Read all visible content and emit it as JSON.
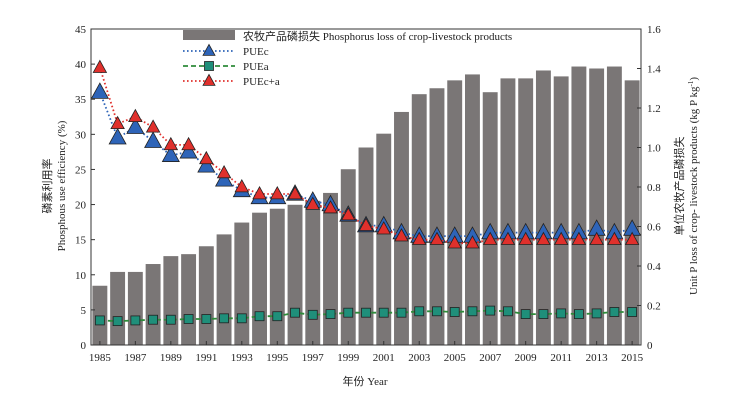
{
  "chart_data": {
    "type": "bar",
    "title": "",
    "xlabel": "年份 Year",
    "ylabel_left_cn": "磷素利用率",
    "ylabel_left_en": "Phosphous use efficiency (%)",
    "ylabel_right_cn": "单位农牧产品磷损失",
    "ylabel_right_en": "Unit P loss of crop- livestock products (kg P kg",
    "ylabel_right_sup": "-1",
    "ylabel_right_end": ")",
    "ylim_left": [
      0,
      45
    ],
    "ylim_right": [
      0,
      1.6
    ],
    "yticks_left": [
      0,
      5,
      10,
      15,
      20,
      25,
      30,
      35,
      40,
      45
    ],
    "yticks_right": [
      0,
      0.2,
      0.4,
      0.6,
      0.8,
      1.0,
      1.2,
      1.4,
      1.6
    ],
    "yticks_right_labels": [
      "0",
      "0.2",
      "0.4",
      "0.6",
      "0.8",
      "1.0",
      "1.2",
      "1.4",
      "1.6"
    ],
    "x": [
      1985,
      1986,
      1987,
      1988,
      1989,
      1990,
      1991,
      1992,
      1993,
      1994,
      1995,
      1996,
      1997,
      1998,
      1999,
      2000,
      2001,
      2002,
      2003,
      2004,
      2005,
      2006,
      2007,
      2008,
      2009,
      2010,
      2011,
      2012,
      2013,
      2014,
      2015
    ],
    "xtick_labels": [
      "1985",
      "1987",
      "1989",
      "1991",
      "1993",
      "1995",
      "1997",
      "1999",
      "2001",
      "2003",
      "2005",
      "2007",
      "2009",
      "2011",
      "2013",
      "2015"
    ],
    "xtick_years": [
      1985,
      1987,
      1989,
      1991,
      1993,
      1995,
      1997,
      1999,
      2001,
      2003,
      2005,
      2007,
      2009,
      2011,
      2013,
      2015
    ],
    "legend_position": "top-center",
    "series": [
      {
        "name": "农牧产品磷损失 Phosphorus loss of crop-livestock products",
        "kind": "bar",
        "axis": "right",
        "color": "#7a7676",
        "values": [
          0.3,
          0.37,
          0.37,
          0.41,
          0.45,
          0.46,
          0.5,
          0.56,
          0.62,
          0.67,
          0.69,
          0.71,
          0.73,
          0.77,
          0.89,
          1.0,
          1.07,
          1.18,
          1.27,
          1.3,
          1.34,
          1.37,
          1.28,
          1.35,
          1.35,
          1.39,
          1.36,
          1.41,
          1.4,
          1.41,
          1.34
        ]
      },
      {
        "name": "PUEc",
        "kind": "line",
        "axis": "left",
        "marker": "triangle",
        "color": "#2e64b8",
        "line_style": "dotted",
        "values": [
          36.0,
          29.5,
          31.0,
          29.0,
          27.0,
          27.5,
          25.5,
          23.5,
          22.0,
          21.0,
          21.0,
          21.5,
          20.5,
          20.0,
          18.5,
          17.0,
          17.0,
          16.0,
          15.5,
          15.5,
          15.5,
          15.5,
          16.0,
          16.0,
          16.0,
          16.0,
          16.0,
          16.0,
          16.5,
          16.0,
          16.5
        ]
      },
      {
        "name": "PUEa",
        "kind": "line",
        "axis": "left",
        "marker": "square",
        "color": "#1f8f7a",
        "line_color": "#2e8b3a",
        "line_style": "dashed",
        "values": [
          3.5,
          3.4,
          3.5,
          3.6,
          3.6,
          3.7,
          3.7,
          3.8,
          3.8,
          4.1,
          4.1,
          4.6,
          4.3,
          4.4,
          4.6,
          4.6,
          4.6,
          4.6,
          4.8,
          4.8,
          4.7,
          4.8,
          4.9,
          4.8,
          4.4,
          4.4,
          4.5,
          4.4,
          4.5,
          4.7,
          4.7
        ]
      },
      {
        "name": "PUEc+a",
        "kind": "line",
        "axis": "left",
        "marker": "triangle",
        "color": "#e0302c",
        "line_style": "dotted",
        "values": [
          39.5,
          31.5,
          32.5,
          31.0,
          28.5,
          28.5,
          26.5,
          24.5,
          22.5,
          21.5,
          21.5,
          21.5,
          20.0,
          19.5,
          18.5,
          17.0,
          16.5,
          15.5,
          15.0,
          15.0,
          14.5,
          14.5,
          15.0,
          15.0,
          15.0,
          15.0,
          15.0,
          15.0,
          15.0,
          15.0,
          15.0
        ]
      }
    ]
  }
}
